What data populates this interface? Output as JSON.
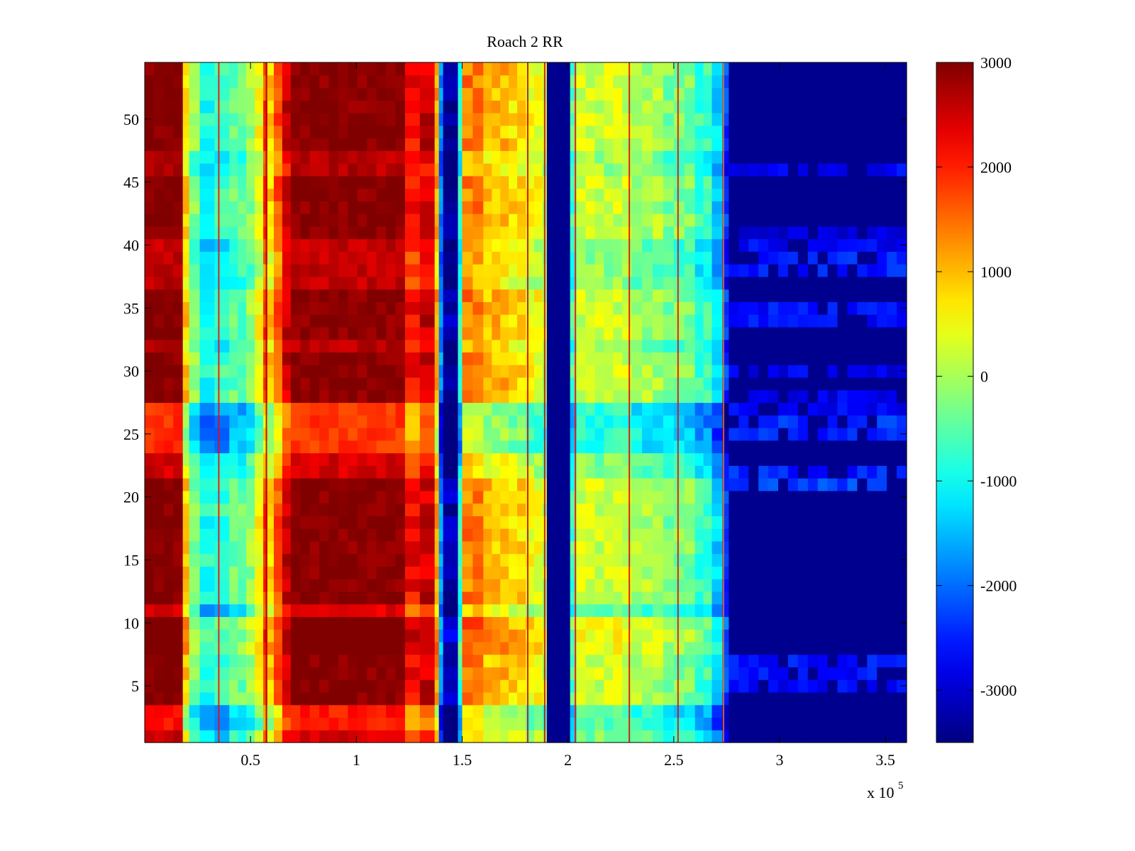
{
  "chart_data": {
    "type": "heatmap",
    "title": "Roach 2 RR",
    "xlabel": "",
    "ylabel": "",
    "x_exponent_label": "x 10",
    "x_exponent": "5",
    "xlim": [
      0,
      360000
    ],
    "ylim": [
      0.5,
      54.5
    ],
    "x_ticks": [
      50000,
      100000,
      150000,
      200000,
      250000,
      300000,
      350000
    ],
    "x_tick_labels": [
      "0.5",
      "1",
      "1.5",
      "2",
      "2.5",
      "3",
      "3.5"
    ],
    "y_ticks": [
      5,
      10,
      15,
      20,
      25,
      30,
      35,
      40,
      45,
      50
    ],
    "y_tick_labels": [
      "5",
      "10",
      "15",
      "20",
      "25",
      "30",
      "35",
      "40",
      "45",
      "50"
    ],
    "rows": 54,
    "colormap": "jet",
    "color_range": [
      -3500,
      3000
    ],
    "colorbar": {
      "ticks": [
        3000,
        2000,
        1000,
        0,
        -1000,
        -2000,
        -3000
      ],
      "tick_labels": [
        "3000",
        "2000",
        "1000",
        "0",
        "-1000",
        "-2000",
        "-3000"
      ]
    },
    "column_bands": [
      {
        "x_start": 0,
        "x_end": 18000,
        "value": 3000
      },
      {
        "x_start": 18000,
        "x_end": 21000,
        "value": 900
      },
      {
        "x_start": 21000,
        "x_end": 26000,
        "value": -200
      },
      {
        "x_start": 26000,
        "x_end": 33000,
        "value": -900
      },
      {
        "x_start": 33000,
        "x_end": 40000,
        "value": -700
      },
      {
        "x_start": 40000,
        "x_end": 48000,
        "value": -400
      },
      {
        "x_start": 48000,
        "x_end": 52000,
        "value": -100
      },
      {
        "x_start": 52000,
        "x_end": 56000,
        "value": 500
      },
      {
        "x_start": 56000,
        "x_end": 58000,
        "value": 1800
      },
      {
        "x_start": 58000,
        "x_end": 61000,
        "value": 900
      },
      {
        "x_start": 61000,
        "x_end": 65000,
        "value": 1700
      },
      {
        "x_start": 65000,
        "x_end": 69000,
        "value": 2500
      },
      {
        "x_start": 69000,
        "x_end": 123000,
        "value": 2950
      },
      {
        "x_start": 123000,
        "x_end": 130000,
        "value": 2200
      },
      {
        "x_start": 130000,
        "x_end": 137000,
        "value": 2500
      },
      {
        "x_start": 137000,
        "x_end": 139000,
        "value": 1200
      },
      {
        "x_start": 139000,
        "x_end": 141000,
        "value": -1800
      },
      {
        "x_start": 141000,
        "x_end": 148000,
        "value": -3200
      },
      {
        "x_start": 148000,
        "x_end": 150000,
        "value": -800
      },
      {
        "x_start": 150000,
        "x_end": 160000,
        "value": 1400
      },
      {
        "x_start": 160000,
        "x_end": 172000,
        "value": 1000
      },
      {
        "x_start": 172000,
        "x_end": 180000,
        "value": 800
      },
      {
        "x_start": 180000,
        "x_end": 188000,
        "value": 500
      },
      {
        "x_start": 188000,
        "x_end": 190000,
        "value": 200
      },
      {
        "x_start": 190000,
        "x_end": 201000,
        "value": -3400
      },
      {
        "x_start": 201000,
        "x_end": 204000,
        "value": -600
      },
      {
        "x_start": 204000,
        "x_end": 230000,
        "value": 250
      },
      {
        "x_start": 230000,
        "x_end": 245000,
        "value": 0
      },
      {
        "x_start": 245000,
        "x_end": 260000,
        "value": -250
      },
      {
        "x_start": 260000,
        "x_end": 268000,
        "value": -700
      },
      {
        "x_start": 268000,
        "x_end": 273000,
        "value": -1300
      },
      {
        "x_start": 273000,
        "x_end": 276000,
        "value": -2300
      },
      {
        "x_start": 276000,
        "x_end": 360000,
        "value": -3400
      }
    ],
    "vertical_lines": [
      {
        "x": 35000,
        "value": 2200
      },
      {
        "x": 57500,
        "value": 2800
      },
      {
        "x": 181000,
        "value": 2500
      },
      {
        "x": 189000,
        "value": 2600
      },
      {
        "x": 203500,
        "value": 2200
      },
      {
        "x": 229000,
        "value": 2400
      },
      {
        "x": 252000,
        "value": 2300
      },
      {
        "x": 273500,
        "value": 1500
      }
    ],
    "row_modifiers": [
      {
        "row_start": 1,
        "row_end": 1,
        "shift": -500
      },
      {
        "row_start": 2,
        "row_end": 3,
        "shift": -900
      },
      {
        "row_start": 8,
        "row_end": 10,
        "shift": 250
      },
      {
        "row_start": 11,
        "row_end": 11,
        "shift": -600
      },
      {
        "row_start": 22,
        "row_end": 23,
        "shift": -500
      },
      {
        "row_start": 24,
        "row_end": 27,
        "shift": -1100
      },
      {
        "row_start": 32,
        "row_end": 32,
        "shift": -300
      },
      {
        "row_start": 37,
        "row_end": 40,
        "shift": -400
      },
      {
        "row_start": 46,
        "row_end": 47,
        "shift": -300
      }
    ],
    "highlight_rows_blue_region": [
      {
        "row": 5,
        "value": -2700
      },
      {
        "row": 6,
        "value": -2600
      },
      {
        "row": 7,
        "value": -2600
      },
      {
        "row": 21,
        "value": -2300
      },
      {
        "row": 22,
        "value": -2500
      },
      {
        "row": 25,
        "value": -2500
      },
      {
        "row": 26,
        "value": -2400
      },
      {
        "row": 27,
        "value": -2700
      },
      {
        "row": 28,
        "value": -2800
      },
      {
        "row": 30,
        "value": -2800
      },
      {
        "row": 34,
        "value": -2600
      },
      {
        "row": 35,
        "value": -2600
      },
      {
        "row": 38,
        "value": -2500
      },
      {
        "row": 39,
        "value": -2500
      },
      {
        "row": 40,
        "value": -2700
      },
      {
        "row": 41,
        "value": -2900
      },
      {
        "row": 46,
        "value": -2700
      }
    ]
  }
}
